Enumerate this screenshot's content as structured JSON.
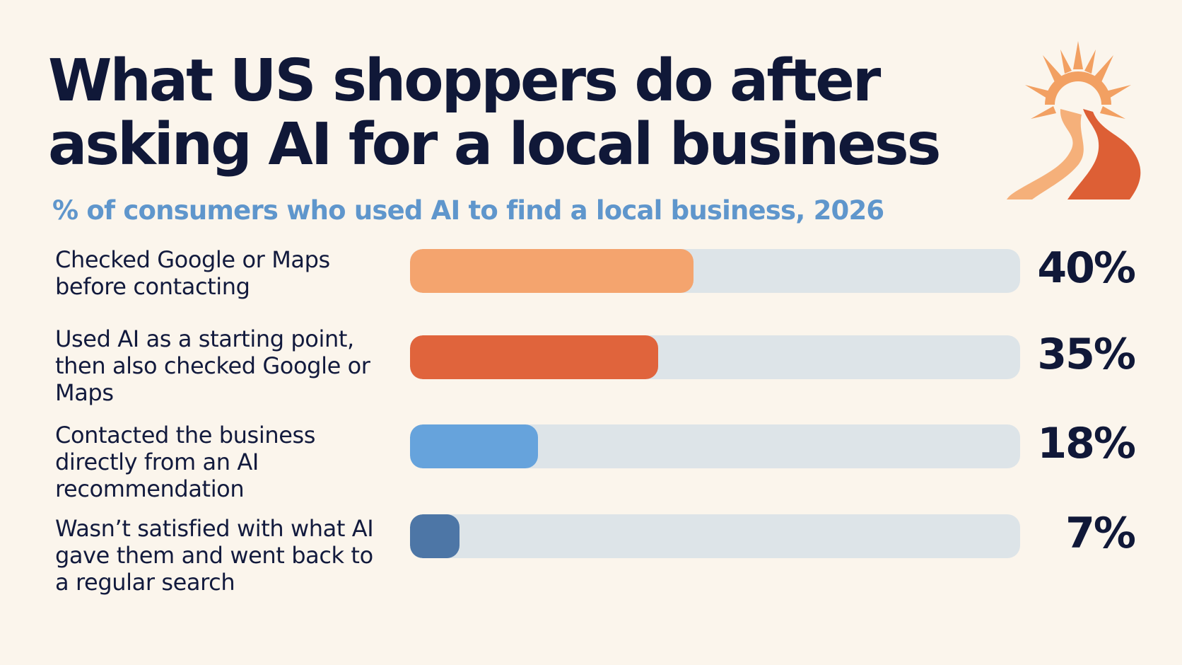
{
  "header": {
    "title": "What US shoppers do after asking AI for a local business",
    "subtitle": "% of consumers who used AI to find a local business, 2026"
  },
  "colors": {
    "background": "#fbf5ec",
    "track": "#dde4e8",
    "title": "#101838",
    "subtitle": "#5f96cc"
  },
  "chart_data": {
    "type": "bar",
    "orientation": "horizontal",
    "title": "What US shoppers do after asking AI for a local business",
    "subtitle": "% of consumers who used AI to find a local business, 2026",
    "categories": [
      "Checked Google or Maps before contacting",
      "Used AI as a starting point, then also checked Google or Maps",
      "Contacted the business directly from an AI recommendation",
      "Wasn’t satisfied with what AI gave them and went back to a regular search"
    ],
    "values": [
      40,
      35,
      18,
      7
    ],
    "value_labels": [
      "40%",
      "35%",
      "18%",
      "7%"
    ],
    "colors": [
      "#f4a46e",
      "#e0643c",
      "#66a3dc",
      "#4d76a6"
    ],
    "xlim": [
      0,
      86
    ],
    "grid": false,
    "legend": "none"
  }
}
